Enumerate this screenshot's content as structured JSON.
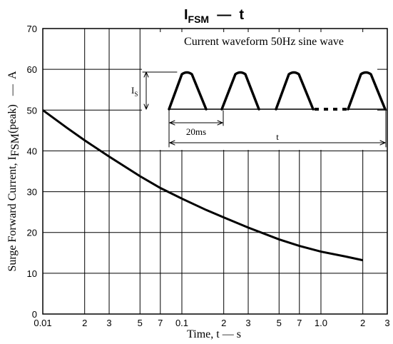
{
  "chart_data": {
    "type": "line",
    "title_main": "I",
    "title_sub": "FSM",
    "title_tail": "  —  t",
    "xlabel": "Time, t  —  s",
    "ylabel_main": "Surge Forward Current, I",
    "ylabel_sub": "FSM",
    "ylabel_tail": "(peak)   —  A",
    "x_scale": "log",
    "xlim": [
      0.01,
      3
    ],
    "ylim": [
      0,
      70
    ],
    "x_ticks": [
      {
        "value": 0.01,
        "label": "0.01"
      },
      {
        "value": 0.02,
        "label": "2"
      },
      {
        "value": 0.03,
        "label": "3"
      },
      {
        "value": 0.05,
        "label": "5"
      },
      {
        "value": 0.07,
        "label": "7"
      },
      {
        "value": 0.1,
        "label": "0.1"
      },
      {
        "value": 0.2,
        "label": "2"
      },
      {
        "value": 0.3,
        "label": "3"
      },
      {
        "value": 0.5,
        "label": "5"
      },
      {
        "value": 0.7,
        "label": "7"
      },
      {
        "value": 1.0,
        "label": "1.0"
      },
      {
        "value": 2.0,
        "label": "2"
      },
      {
        "value": 3.0,
        "label": "3"
      }
    ],
    "y_ticks": [
      0,
      10,
      20,
      30,
      40,
      50,
      60,
      70
    ],
    "grid": true,
    "series": [
      {
        "x": [
          0.01,
          0.015,
          0.02,
          0.03,
          0.05,
          0.07,
          0.1,
          0.15,
          0.2,
          0.3,
          0.5,
          0.7,
          1.0,
          1.5,
          2.0
        ],
        "y": [
          50,
          45.6,
          42.6,
          38.6,
          33.8,
          30.9,
          28.3,
          25.5,
          23.7,
          21.2,
          18.3,
          16.7,
          15.3,
          14.1,
          13.2
        ]
      }
    ],
    "inset": {
      "title": "Current waveform 50Hz sine wave",
      "peak_label_main": "I",
      "peak_label_sub": "S",
      "period_label": "20ms",
      "duration_label": "t"
    }
  }
}
